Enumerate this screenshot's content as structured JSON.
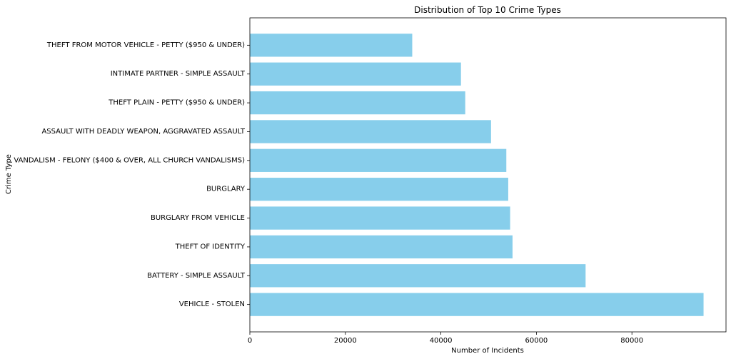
{
  "chart_data": {
    "type": "bar",
    "orientation": "horizontal",
    "title": "Distribution of Top 10 Crime Types",
    "xlabel": "Number of Incidents",
    "ylabel": "Crime Type",
    "xlim": [
      0,
      99700
    ],
    "xticks": [
      0,
      20000,
      40000,
      60000,
      80000
    ],
    "xtick_labels": [
      "0",
      "20000",
      "40000",
      "60000",
      "80000"
    ],
    "grid": false,
    "bar_color": "#87CEEB",
    "categories": [
      "VEHICLE - STOLEN",
      "BATTERY - SIMPLE ASSAULT",
      "THEFT OF IDENTITY",
      "BURGLARY FROM VEHICLE",
      "BURGLARY",
      "VANDALISM - FELONY ($400 & OVER, ALL CHURCH VANDALISMS)",
      "ASSAULT WITH DEADLY WEAPON, AGGRAVATED ASSAULT",
      "THEFT PLAIN - PETTY ($950 & UNDER)",
      "INTIMATE PARTNER - SIMPLE ASSAULT",
      "THEFT FROM MOTOR VEHICLE - PETTY ($950 & UNDER)"
    ],
    "values": [
      95000,
      70300,
      55000,
      54500,
      54100,
      53700,
      50500,
      45100,
      44200,
      34000
    ]
  }
}
